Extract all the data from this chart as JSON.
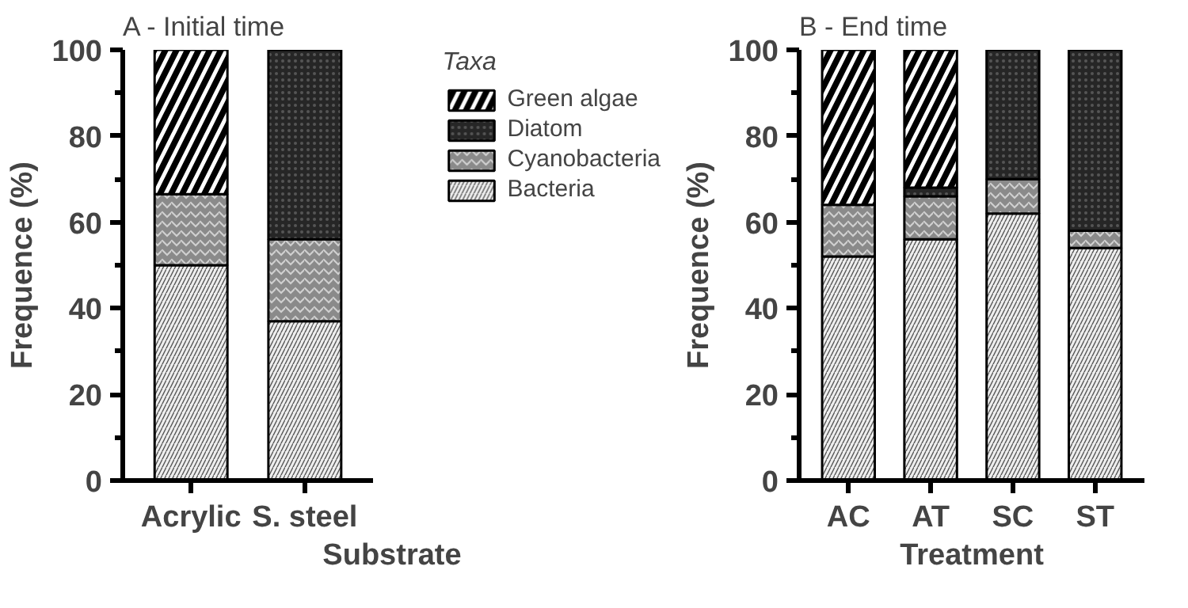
{
  "chart_data": [
    {
      "type": "bar",
      "stacked": true,
      "title": "A - Initial time",
      "xlabel": "Substrate",
      "ylabel": "Frequence (%)",
      "legend_title": "Taxa",
      "legend": "right",
      "grid": false,
      "categories": [
        "Acrylic",
        "S. steel"
      ],
      "ylim": [
        0,
        100
      ],
      "yticks": [
        0,
        {
          "value": 10,
          "label": null
        },
        20,
        {
          "value": 30,
          "label": null
        },
        40,
        {
          "value": 50,
          "label": null
        },
        60,
        {
          "value": 70,
          "label": null
        },
        80,
        {
          "value": 90,
          "label": null
        },
        100
      ],
      "series": [
        {
          "name": "Bacteria",
          "color": "#eeeeee",
          "values": [
            50,
            37
          ]
        },
        {
          "name": "Cyanobacteria",
          "color": "#8a8a8a",
          "values": [
            16.5,
            19
          ]
        },
        {
          "name": "Diatom",
          "color": "#262626",
          "values": [
            0,
            44
          ]
        },
        {
          "name": "Green algae",
          "color": "#000000",
          "values": [
            33.5,
            0
          ]
        }
      ]
    },
    {
      "type": "bar",
      "stacked": true,
      "title": "B - End time",
      "xlabel": "Treatment",
      "ylabel": "Frequence (%)",
      "grid": false,
      "categories": [
        "AC",
        "AT",
        "SC",
        "ST"
      ],
      "ylim": [
        0,
        100
      ],
      "yticks": [
        0,
        {
          "value": 10,
          "label": null
        },
        20,
        {
          "value": 30,
          "label": null
        },
        40,
        {
          "value": 50,
          "label": null
        },
        60,
        {
          "value": 70,
          "label": null
        },
        80,
        {
          "value": 90,
          "label": null
        },
        100
      ],
      "series": [
        {
          "color": "#eeeeee",
          "values": [
            52,
            56,
            62,
            54
          ]
        },
        {
          "color": "#8a8a8a",
          "values": [
            12,
            10,
            8,
            4
          ]
        },
        {
          "color": "#262626",
          "values": [
            0,
            2,
            30,
            42
          ]
        },
        {
          "color": "#000000",
          "values": [
            36,
            32,
            0,
            0
          ]
        }
      ]
    }
  ]
}
